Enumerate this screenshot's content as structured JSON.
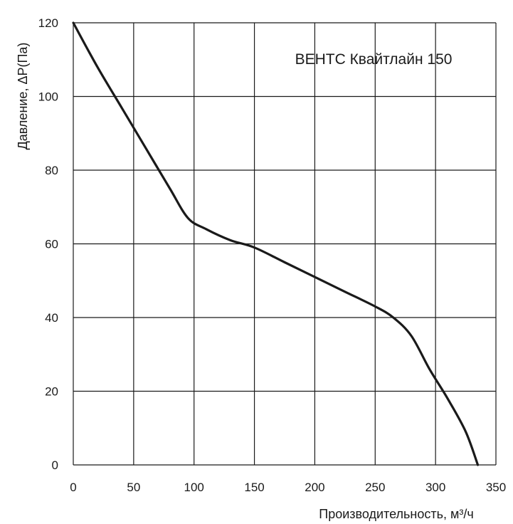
{
  "chart_data": {
    "type": "line",
    "xlabel": "Производительность, м³/ч",
    "ylabel": "Давление, ΔР(Па)",
    "xlim": [
      0,
      350
    ],
    "ylim": [
      0,
      120
    ],
    "x_ticks": [
      0,
      50,
      100,
      150,
      200,
      250,
      300,
      350
    ],
    "y_ticks": [
      0,
      20,
      40,
      60,
      80,
      100,
      120
    ],
    "grid": true,
    "legend_position": "top-right",
    "series": [
      {
        "name": "ВЕНТС Квайтлайн 150",
        "color": "#1a1a1a",
        "x": [
          0,
          20,
          40,
          60,
          80,
          95,
          110,
          130,
          150,
          175,
          200,
          225,
          250,
          265,
          280,
          295,
          310,
          325,
          335
        ],
        "y": [
          120,
          108,
          97,
          86,
          75,
          67,
          64,
          61,
          59,
          55,
          51,
          47,
          43,
          40,
          35,
          26,
          18,
          9,
          0
        ]
      }
    ]
  }
}
